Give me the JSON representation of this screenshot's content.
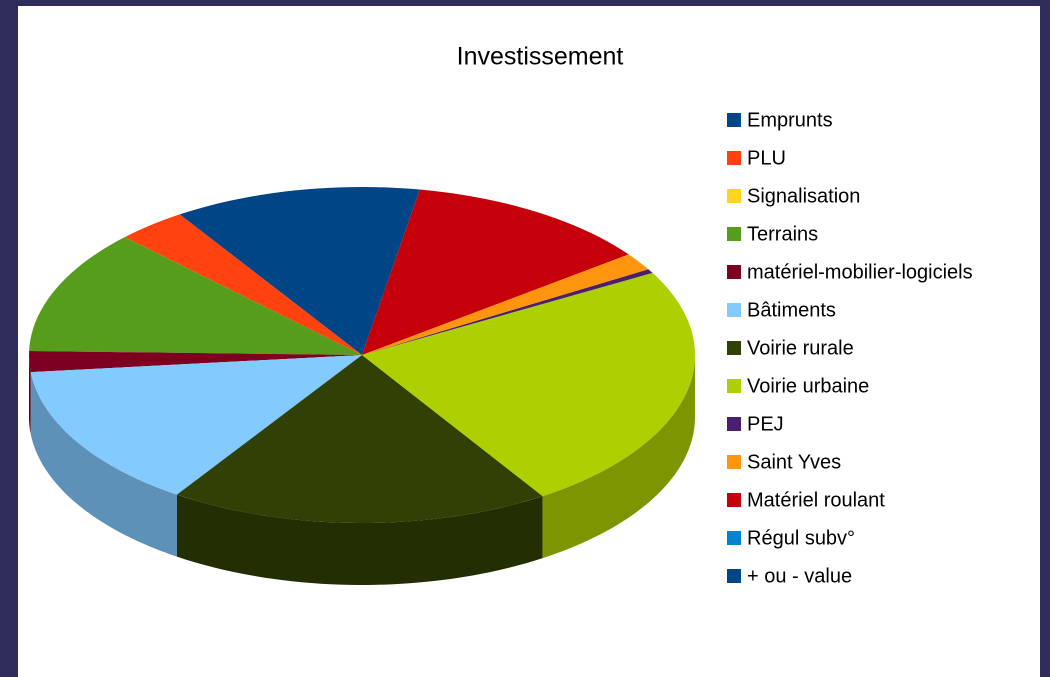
{
  "chart_data": {
    "type": "pie3d",
    "title": "Investissement",
    "categories": [
      "Emprunts",
      "PLU",
      "Signalisation",
      "Terrains",
      "matériel-mobilier-logiciels",
      "Bâtiments",
      "Voirie rurale",
      "Voirie urbaine",
      "PEJ",
      "Saint Yves",
      "Matériel roulant",
      "Régul subv°",
      "+ ou - value"
    ],
    "values": [
      12,
      3.4,
      0,
      12,
      2,
      14,
      18.5,
      24,
      0.4,
      1.7,
      12,
      0,
      0
    ],
    "colors": [
      "#004586",
      "#ff420e",
      "#ffd320",
      "#579d1c",
      "#7e0021",
      "#83caff",
      "#314004",
      "#aecf00",
      "#4b1f6f",
      "#ff950e",
      "#c5000b",
      "#0084d1",
      "#004586"
    ],
    "legend": "right"
  }
}
